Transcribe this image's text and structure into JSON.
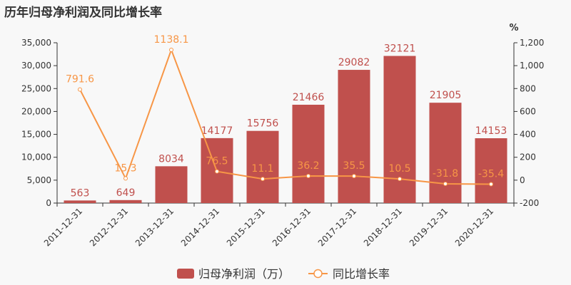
{
  "chart_data": {
    "type": "bar",
    "title": "历年归母净利润及同比增长率",
    "categories": [
      "2011-12-31",
      "2012-12-31",
      "2013-12-31",
      "2014-12-31",
      "2015-12-31",
      "2016-12-31",
      "2017-12-31",
      "2018-12-31",
      "2019-12-31",
      "2020-12-31"
    ],
    "series": [
      {
        "name": "归母净利润（万）",
        "type": "bar",
        "axis": "left",
        "color": "#c0504d",
        "values": [
          563,
          649,
          8034,
          14177,
          15756,
          21466,
          29082,
          32121,
          21905,
          14153
        ],
        "labels": [
          "563",
          "649",
          "8034",
          "14177",
          "15756",
          "21466",
          "29082",
          "32121",
          "21905",
          "14153"
        ]
      },
      {
        "name": "同比增长率",
        "type": "line",
        "axis": "right",
        "color": "#f79646",
        "values": [
          791.6,
          15.3,
          1138.1,
          76.5,
          11.1,
          36.2,
          35.5,
          10.5,
          -31.8,
          -35.4
        ],
        "labels": [
          "791.6",
          "15.3",
          "1138.1",
          "76.5",
          "11.1",
          "36.2",
          "35.5",
          "10.5",
          "-31.8",
          "-35.4"
        ]
      }
    ],
    "y_left": {
      "range": [
        0,
        35000
      ],
      "ticks": [
        0,
        5000,
        10000,
        15000,
        20000,
        25000,
        30000,
        35000
      ],
      "tick_labels": [
        "0",
        "5,000",
        "10,000",
        "15,000",
        "20,000",
        "25,000",
        "30,000",
        "35,000"
      ]
    },
    "y_right": {
      "label": "%",
      "range": [
        -200,
        1200
      ],
      "ticks": [
        -200,
        0,
        200,
        400,
        600,
        800,
        1000,
        1200
      ],
      "tick_labels": [
        "-200",
        "0",
        "200",
        "400",
        "600",
        "800",
        "1,000",
        "1,200"
      ]
    },
    "grid": false,
    "legend_position": "bottom-center"
  }
}
